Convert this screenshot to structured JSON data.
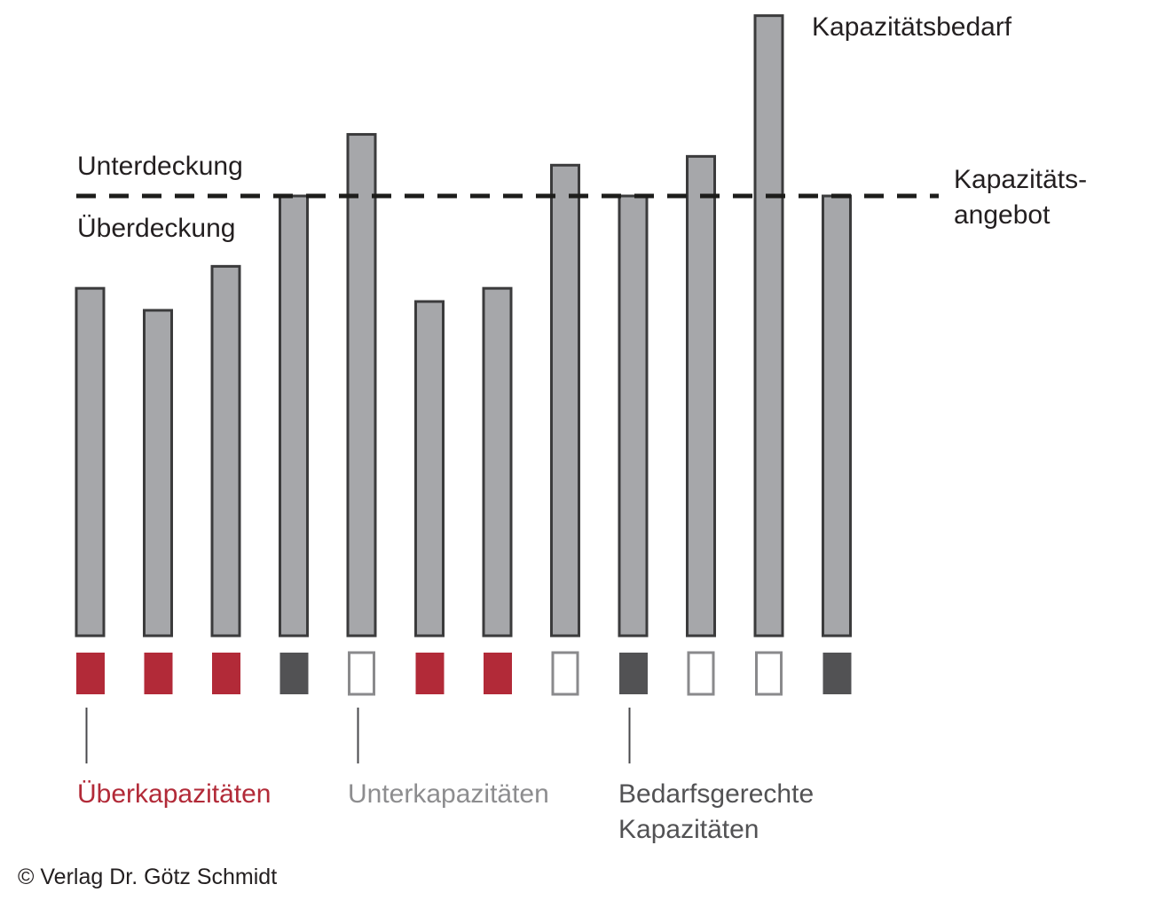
{
  "chart_data": {
    "type": "bar",
    "categories": [
      "",
      "",
      "",
      "",
      "",
      "",
      "",
      "",
      "",
      "",
      "",
      ""
    ],
    "series": [
      {
        "name": "Kapazitätsbedarf",
        "values": [
          79,
          74,
          84,
          100,
          114,
          76,
          79,
          107,
          100,
          109,
          141,
          100
        ]
      }
    ],
    "supply_level": 100,
    "ylim": [
      0,
      142
    ],
    "status_per_bar": [
      "ueber",
      "ueber",
      "ueber",
      "gerecht",
      "unter",
      "ueber",
      "ueber",
      "unter",
      "gerecht",
      "unter",
      "unter",
      "gerecht"
    ],
    "colors": {
      "bar_fill": "#a6a7aa",
      "bar_stroke": "#3b3b3c",
      "supply_line": "#1d1d1b",
      "ueber": "#b22a38",
      "gerecht": "#525254",
      "unter_fill": "#ffffff",
      "unter_stroke": "#8a8a8c"
    },
    "labels": {
      "demand": "Kapazitätsbedarf",
      "supply_line1": "Kapazitäts-",
      "supply_line2": "angebot",
      "above": "Unterdeckung",
      "below": "Überdeckung"
    },
    "legend": [
      {
        "key": "ueber",
        "text": "Überkapazitäten",
        "color": "#b22a38"
      },
      {
        "key": "unter",
        "text": "Unterkapazitäten",
        "color": "#8d8d8f"
      },
      {
        "key": "gerecht",
        "text_line1": "Bedarfsgerechte",
        "text_line2": "Kapazitäten",
        "color": "#525254"
      }
    ],
    "grid": false
  },
  "copyright": "© Verlag Dr. Götz Schmidt"
}
